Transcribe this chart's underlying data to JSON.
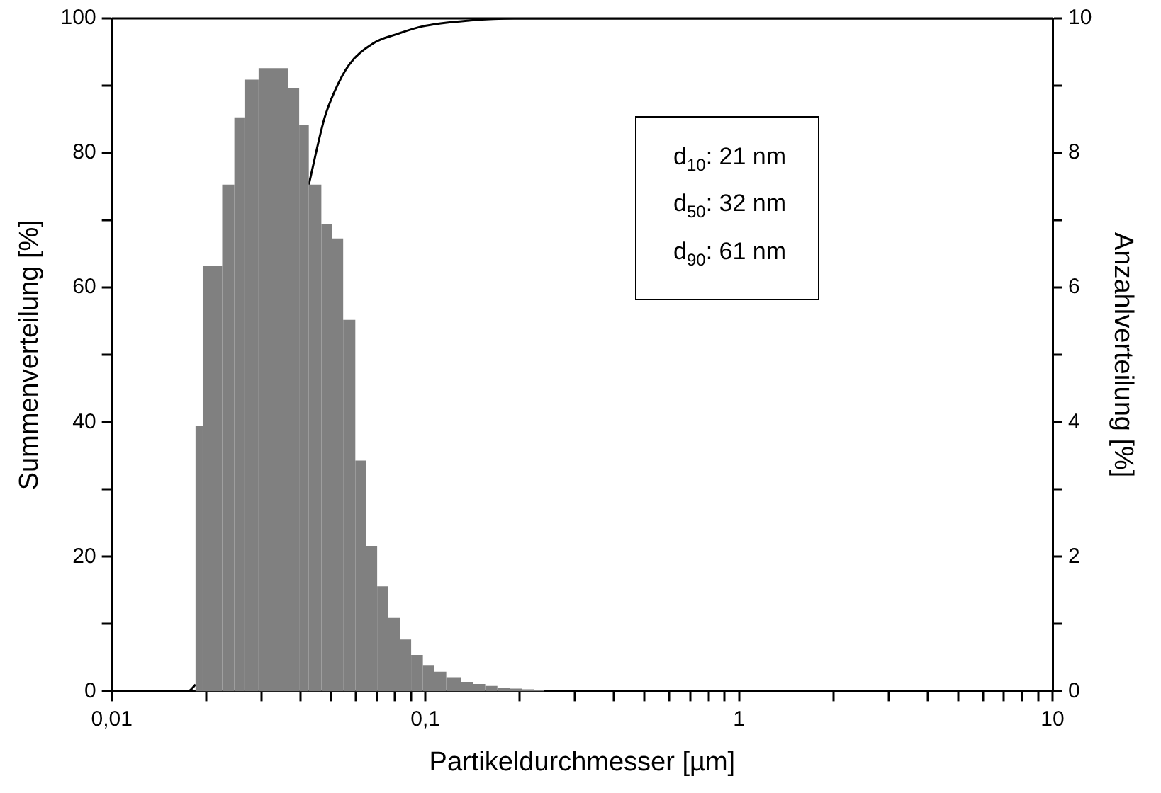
{
  "chart_data": {
    "type": "histogram",
    "xlabel": "Partikeldurchmesser [µm]",
    "ylabel": "Summenverteilung [%]",
    "y2label": "Anzahlverteilung [%]",
    "log": "x",
    "grid": false,
    "legend": false,
    "marker": "none",
    "xlim": [
      0.01,
      10
    ],
    "xticks": [
      {
        "value": 0.01,
        "label": "0,01"
      },
      {
        "value": 0.02,
        "label": null
      },
      {
        "value": 0.03,
        "label": null
      },
      {
        "value": 0.04,
        "label": null
      },
      {
        "value": 0.05,
        "label": null
      },
      {
        "value": 0.06,
        "label": null
      },
      {
        "value": 0.07,
        "label": null
      },
      {
        "value": 0.08,
        "label": null
      },
      {
        "value": 0.09,
        "label": null
      },
      {
        "value": 0.1,
        "label": "0,1"
      },
      {
        "value": 0.2,
        "label": null
      },
      {
        "value": 0.3,
        "label": null
      },
      {
        "value": 0.4,
        "label": null
      },
      {
        "value": 0.5,
        "label": null
      },
      {
        "value": 0.6,
        "label": null
      },
      {
        "value": 0.7,
        "label": null
      },
      {
        "value": 0.8,
        "label": null
      },
      {
        "value": 0.9,
        "label": null
      },
      1,
      {
        "value": 2,
        "label": null
      },
      {
        "value": 3,
        "label": null
      },
      {
        "value": 4,
        "label": null
      },
      {
        "value": 5,
        "label": null
      },
      {
        "value": 6,
        "label": null
      },
      {
        "value": 7,
        "label": null
      },
      {
        "value": 8,
        "label": null
      },
      {
        "value": 9,
        "label": null
      },
      10
    ],
    "ylim": [
      0,
      100
    ],
    "yticks": [
      0,
      {
        "value": 10,
        "label": null
      },
      20,
      {
        "value": 30,
        "label": null
      },
      40,
      {
        "value": 50,
        "label": null
      },
      60,
      {
        "value": 70,
        "label": null
      },
      80,
      {
        "value": 90,
        "label": null
      },
      100
    ],
    "y2lim": [
      0,
      10
    ],
    "y2ticks": [
      0,
      {
        "value": 1,
        "label": null
      },
      2,
      {
        "value": 3,
        "label": null
      },
      4,
      {
        "value": 5,
        "label": null
      },
      6,
      {
        "value": 7,
        "label": null
      },
      8,
      {
        "value": 9,
        "label": null
      },
      10
    ],
    "annotations": [
      "d$_{10}$: 21 nm",
      "d$_{50}$: 32 nm",
      "d$_{90}$: 61 nm"
    ],
    "series": [
      {
        "type": "histogram",
        "axis": "y2",
        "color": "#808080",
        "bins": [
          0.0185,
          0.0195,
          0.0225,
          0.0246,
          0.0265,
          0.0294,
          0.0365,
          0.0396,
          0.0425,
          0.0466,
          0.0505,
          0.0547,
          0.0598,
          0.0646,
          0.0702,
          0.0762,
          0.0831,
          0.0901,
          0.0982,
          0.1066,
          0.1166,
          0.1298,
          0.142,
          0.1552,
          0.1697,
          0.1857,
          0.203,
          0.2219,
          0.2384
        ],
        "values": [
          3.95,
          6.32,
          7.53,
          8.53,
          9.09,
          9.26,
          8.97,
          8.41,
          7.53,
          6.94,
          6.73,
          5.52,
          3.43,
          2.16,
          1.56,
          1.09,
          0.77,
          0.54,
          0.39,
          0.29,
          0.21,
          0.14,
          0.11,
          0.08,
          0.05,
          0.04,
          0.03,
          0.02
        ]
      },
      {
        "type": "line",
        "axis": "y",
        "color": "#000000",
        "x": [
          0.01,
          0.0175,
          0.0185,
          0.03,
          0.0425,
          0.0477,
          0.0513,
          0.0571,
          0.0682,
          0.0816,
          0.0976,
          0.1394,
          0.192,
          10
        ],
        "values": [
          0,
          0,
          1,
          null,
          75.3,
          85.2,
          89.1,
          93.1,
          96.3,
          97.7,
          98.8,
          99.7,
          100,
          100
        ]
      }
    ]
  }
}
